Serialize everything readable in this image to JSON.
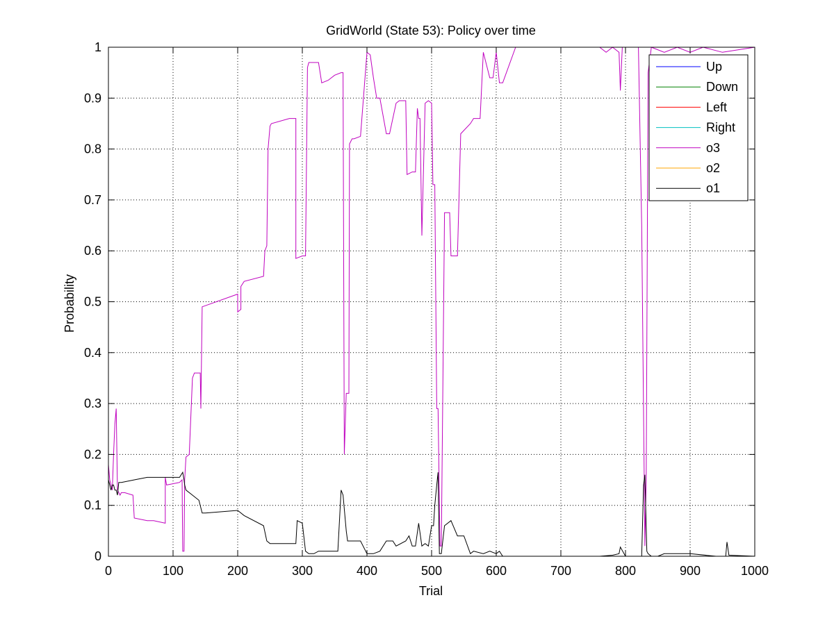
{
  "chart_data": {
    "type": "line",
    "title": "GridWorld (State 53): Policy over time",
    "xlabel": "Trial",
    "ylabel": "Probability",
    "xlim": [
      0,
      1000
    ],
    "ylim": [
      0,
      1
    ],
    "xticks": [
      0,
      100,
      200,
      300,
      400,
      500,
      600,
      700,
      800,
      900,
      1000
    ],
    "yticks": [
      0,
      0.1,
      0.2,
      0.3,
      0.4,
      0.5,
      0.6,
      0.7,
      0.8,
      0.9,
      1
    ],
    "grid": true,
    "legend_position": "top-right",
    "series": [
      {
        "name": "Up",
        "color": "#0000ff",
        "x": [],
        "y": []
      },
      {
        "name": "Down",
        "color": "#008000",
        "x": [],
        "y": []
      },
      {
        "name": "Left",
        "color": "#ff0000",
        "x": [],
        "y": []
      },
      {
        "name": "Right",
        "color": "#00bfbf",
        "x": [],
        "y": []
      },
      {
        "name": "o3",
        "color": "#bf00bf",
        "x": [
          0,
          2,
          4,
          6,
          8,
          10,
          12,
          14,
          16,
          18,
          20,
          25,
          38,
          40,
          60,
          70,
          88,
          88,
          90,
          110,
          114,
          115,
          117,
          118,
          120,
          125,
          130,
          133,
          142,
          143,
          145,
          200,
          200,
          205,
          205,
          210,
          240,
          242,
          245,
          247,
          250,
          252,
          280,
          290,
          290,
          300,
          305,
          308,
          310,
          318,
          325,
          330,
          340,
          345,
          350,
          360,
          363,
          365,
          368,
          370,
          372,
          373,
          377,
          380,
          390,
          400,
          405,
          410,
          415,
          420,
          430,
          435,
          445,
          450,
          460,
          462,
          470,
          475,
          478,
          480,
          482,
          485,
          490,
          495,
          500,
          502,
          505,
          508,
          510,
          513,
          515,
          520,
          528,
          530,
          540,
          545,
          560,
          565,
          570,
          575,
          580,
          590,
          595,
          600,
          605,
          610,
          630,
          650,
          700,
          760,
          770,
          780,
          790,
          792,
          795,
          800,
          820,
          825,
          830,
          832,
          835,
          840,
          860,
          880,
          900,
          920,
          950,
          1000
        ],
        "y": [
          0.18,
          0.15,
          0.14,
          0.13,
          0.2,
          0.26,
          0.29,
          0.13,
          0.125,
          0.12,
          0.125,
          0.125,
          0.12,
          0.075,
          0.07,
          0.07,
          0.065,
          0.155,
          0.14,
          0.145,
          0.15,
          0.01,
          0.01,
          0.15,
          0.195,
          0.2,
          0.35,
          0.36,
          0.36,
          0.29,
          0.49,
          0.515,
          0.48,
          0.485,
          0.53,
          0.54,
          0.55,
          0.6,
          0.61,
          0.8,
          0.845,
          0.85,
          0.86,
          0.86,
          0.585,
          0.59,
          0.59,
          0.96,
          0.97,
          0.97,
          0.97,
          0.93,
          0.935,
          0.94,
          0.945,
          0.95,
          0.95,
          0.2,
          0.32,
          0.32,
          0.32,
          0.81,
          0.82,
          0.82,
          0.825,
          0.99,
          0.985,
          0.94,
          0.9,
          0.9,
          0.83,
          0.83,
          0.89,
          0.895,
          0.895,
          0.75,
          0.755,
          0.755,
          0.88,
          0.86,
          0.86,
          0.63,
          0.89,
          0.895,
          0.89,
          0.73,
          0.73,
          0.29,
          0.29,
          0.02,
          0.02,
          0.675,
          0.675,
          0.59,
          0.59,
          0.83,
          0.85,
          0.86,
          0.86,
          0.86,
          0.99,
          0.94,
          0.94,
          0.99,
          0.93,
          0.93,
          1.0,
          1.0,
          1.0,
          1.0,
          0.99,
          1.0,
          0.99,
          0.915,
          1.0,
          1.0,
          1.0,
          0.65,
          0.02,
          0.15,
          0.95,
          1.0,
          0.99,
          1.0,
          0.99,
          1.0,
          0.99,
          1.0
        ]
      },
      {
        "name": "o2",
        "color": "#ffa500",
        "x": [],
        "y": []
      },
      {
        "name": "o1",
        "color": "#000000",
        "x": [
          0,
          2,
          4,
          6,
          8,
          10,
          12,
          14,
          16,
          20,
          40,
          60,
          88,
          90,
          100,
          110,
          115,
          117,
          118,
          120,
          130,
          140,
          145,
          150,
          200,
          210,
          240,
          245,
          250,
          260,
          290,
          292,
          300,
          305,
          310,
          318,
          325,
          330,
          340,
          350,
          355,
          360,
          363,
          368,
          370,
          372,
          375,
          390,
          400,
          405,
          410,
          420,
          430,
          440,
          445,
          460,
          465,
          470,
          475,
          480,
          485,
          490,
          495,
          500,
          503,
          505,
          508,
          510,
          512,
          515,
          520,
          530,
          540,
          550,
          560,
          565,
          580,
          590,
          600,
          605,
          610,
          640,
          700,
          760,
          780,
          790,
          792,
          800,
          820,
          825,
          828,
          830,
          833,
          835,
          840,
          850,
          860,
          880,
          900,
          940,
          955,
          957,
          960,
          1000
        ],
        "y": [
          0.15,
          0.14,
          0.13,
          0.14,
          0.14,
          0.13,
          0.13,
          0.12,
          0.145,
          0.145,
          0.15,
          0.155,
          0.155,
          0.155,
          0.155,
          0.155,
          0.165,
          0.15,
          0.14,
          0.13,
          0.12,
          0.11,
          0.085,
          0.085,
          0.09,
          0.08,
          0.06,
          0.03,
          0.025,
          0.025,
          0.025,
          0.07,
          0.065,
          0.01,
          0.005,
          0.005,
          0.01,
          0.01,
          0.01,
          0.01,
          0.01,
          0.13,
          0.12,
          0.05,
          0.03,
          0.03,
          0.03,
          0.03,
          0.005,
          0.005,
          0.005,
          0.01,
          0.03,
          0.03,
          0.02,
          0.03,
          0.04,
          0.02,
          0.02,
          0.065,
          0.02,
          0.025,
          0.02,
          0.06,
          0.06,
          0.1,
          0.14,
          0.165,
          0.005,
          0.005,
          0.06,
          0.07,
          0.04,
          0.04,
          0.005,
          0.01,
          0.005,
          0.01,
          0.005,
          0.01,
          0.0,
          0.0,
          0.0,
          0.0,
          0.002,
          0.005,
          0.018,
          0.0,
          0.0,
          0.0,
          0.14,
          0.16,
          0.01,
          0.005,
          0.0,
          0.0,
          0.005,
          0.005,
          0.005,
          0.0,
          0.0,
          0.028,
          0.002,
          0.0
        ]
      }
    ]
  }
}
